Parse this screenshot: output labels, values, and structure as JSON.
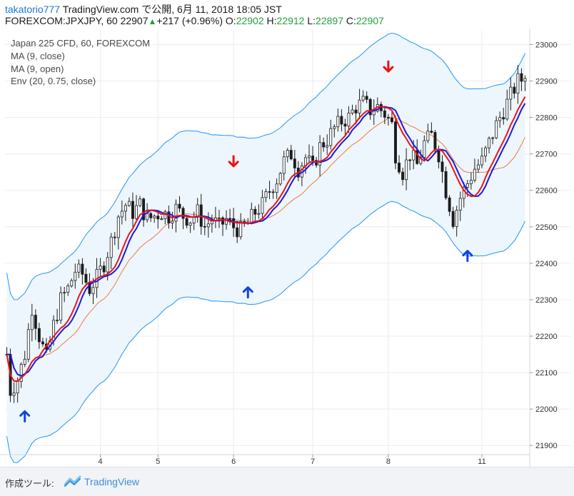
{
  "header": {
    "author": "takatorio777",
    "published": "TradingView.com で公開, 6月 11, 2018 18:05 JST",
    "symbol_interval": "FOREXCOM:JPXJPY, 60",
    "last_price": "22907",
    "change_arrow": "▲",
    "change": "+217 (+0.96%)",
    "o_label": "O:",
    "o_value": "22902",
    "h_label": "H:",
    "h_value": "22912",
    "l_label": "L:",
    "l_value": "22897",
    "c_label": "C:",
    "c_value": "22907"
  },
  "legend": [
    "Japan 225 CFD, 60, FOREXCOM",
    "MA (9, close)",
    "MA (9, open)",
    "Env (20, 0.75, close)"
  ],
  "footer": {
    "label": "作成ツール:",
    "brand": "TradingView"
  },
  "colors": {
    "ma_close": "#e8141c",
    "ma_open": "#1a1ad6",
    "env_band": "#2196f3",
    "env_basis": "#f07a3a",
    "env_fill": "#eef6fd",
    "candle": "#1c1c1c",
    "arrow_up": "#1144dd",
    "arrow_down": "#ee1111"
  },
  "chart_data": {
    "type": "candlestick",
    "ylim": [
      21875,
      23040
    ],
    "y_ticks": [
      21900,
      22000,
      22100,
      22200,
      22300,
      22400,
      22500,
      22600,
      22700,
      22800,
      22900,
      23000
    ],
    "x_ticks": [
      {
        "label": "4",
        "bar": 26
      },
      {
        "label": "5",
        "bar": 42
      },
      {
        "label": "6",
        "bar": 63
      },
      {
        "label": "7",
        "bar": 85
      },
      {
        "label": "8",
        "bar": 106
      },
      {
        "label": "11",
        "bar": 132
      }
    ],
    "bar_count": 145,
    "price_keypoints": [
      [
        0,
        22150
      ],
      [
        1,
        22050
      ],
      [
        3,
        22080
      ],
      [
        5,
        22150
      ],
      [
        7,
        22280
      ],
      [
        9,
        22200
      ],
      [
        11,
        22140
      ],
      [
        13,
        22230
      ],
      [
        15,
        22300
      ],
      [
        17,
        22330
      ],
      [
        19,
        22380
      ],
      [
        21,
        22370
      ],
      [
        23,
        22330
      ],
      [
        25,
        22360
      ],
      [
        27,
        22400
      ],
      [
        29,
        22460
      ],
      [
        31,
        22530
      ],
      [
        33,
        22560
      ],
      [
        35,
        22540
      ],
      [
        37,
        22560
      ],
      [
        39,
        22520
      ],
      [
        41,
        22530
      ],
      [
        43,
        22540
      ],
      [
        45,
        22530
      ],
      [
        47,
        22550
      ],
      [
        49,
        22530
      ],
      [
        51,
        22520
      ],
      [
        53,
        22540
      ],
      [
        55,
        22500
      ],
      [
        57,
        22520
      ],
      [
        59,
        22500
      ],
      [
        61,
        22520
      ],
      [
        63,
        22500
      ],
      [
        65,
        22490
      ],
      [
        67,
        22510
      ],
      [
        69,
        22540
      ],
      [
        71,
        22560
      ],
      [
        73,
        22600
      ],
      [
        75,
        22630
      ],
      [
        77,
        22680
      ],
      [
        79,
        22700
      ],
      [
        81,
        22660
      ],
      [
        83,
        22690
      ],
      [
        85,
        22660
      ],
      [
        87,
        22720
      ],
      [
        89,
        22740
      ],
      [
        91,
        22770
      ],
      [
        93,
        22790
      ],
      [
        95,
        22800
      ],
      [
        97,
        22830
      ],
      [
        99,
        22840
      ],
      [
        101,
        22820
      ],
      [
        103,
        22830
      ],
      [
        105,
        22810
      ],
      [
        107,
        22780
      ],
      [
        108,
        22700
      ],
      [
        110,
        22650
      ],
      [
        112,
        22700
      ],
      [
        114,
        22670
      ],
      [
        116,
        22730
      ],
      [
        118,
        22750
      ],
      [
        120,
        22700
      ],
      [
        122,
        22600
      ],
      [
        124,
        22520
      ],
      [
        126,
        22580
      ],
      [
        128,
        22620
      ],
      [
        130,
        22660
      ],
      [
        132,
        22680
      ],
      [
        134,
        22730
      ],
      [
        136,
        22780
      ],
      [
        138,
        22820
      ],
      [
        140,
        22860
      ],
      [
        142,
        22900
      ],
      [
        144,
        22907
      ]
    ],
    "envelope_percent": 0.75,
    "ma_length": 9,
    "env_length": 20,
    "signals": [
      {
        "type": "up",
        "bar": 5,
        "price": 21980
      },
      {
        "type": "down",
        "bar": 63,
        "price": 22680
      },
      {
        "type": "up",
        "bar": 67,
        "price": 22320
      },
      {
        "type": "down",
        "bar": 106,
        "price": 22940
      },
      {
        "type": "up",
        "bar": 128,
        "price": 22420
      }
    ]
  }
}
